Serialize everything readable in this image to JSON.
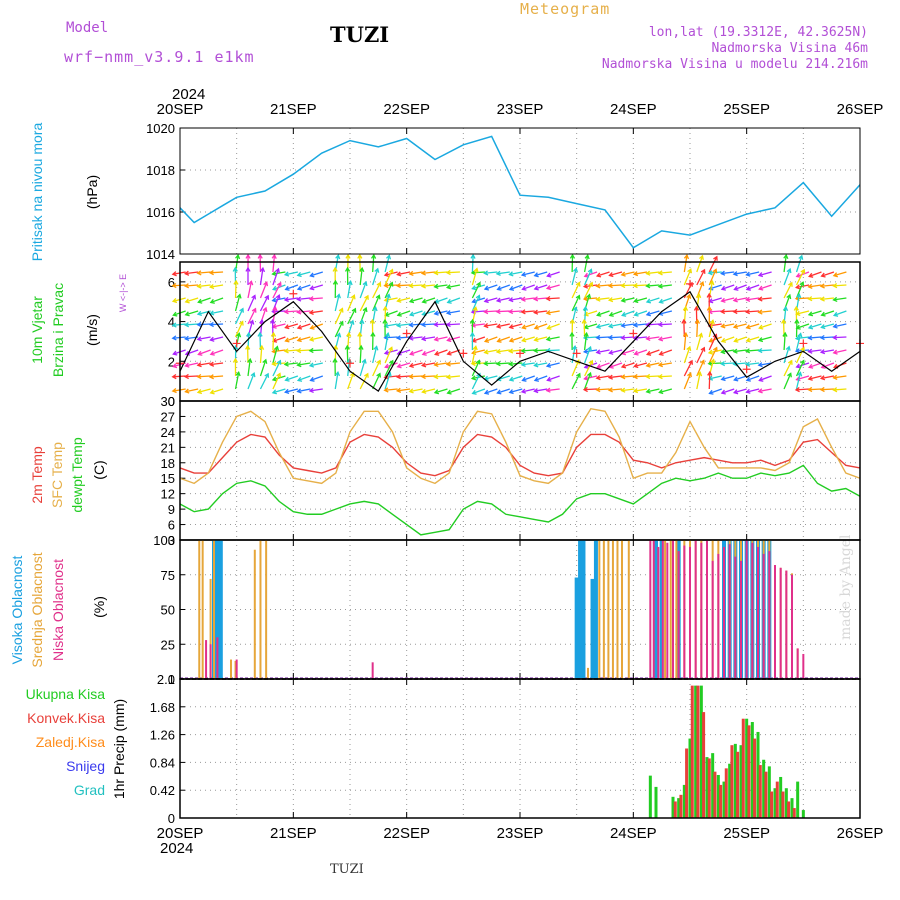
{
  "header": {
    "model_label": "Model",
    "model_name": "wrf−nmm_v3.9.1 e1km",
    "station": "TUZI",
    "title": "Meteogram",
    "location": "lon,lat (19.3312E, 42.3625N)",
    "height": "Nadmorska Visina 46m",
    "model_height": "Nadmorska Visina u modelu 214.216m"
  },
  "footer": {
    "station": "TUZI",
    "credit": "made by Angel"
  },
  "chart_data": [
    {
      "type": "line",
      "name": "pressure",
      "ylabel": "Pritisak na nivou mora",
      "unit": "(hPa)",
      "ylim": [
        1014,
        1020
      ],
      "yticks": [
        1014,
        1016,
        1018,
        1020
      ],
      "x_ticks": [
        "20SEP",
        "21SEP",
        "22SEP",
        "23SEP",
        "24SEP",
        "25SEP",
        "26SEP"
      ],
      "year": "2024",
      "grid": true,
      "x": [
        0,
        0.125,
        0.25,
        0.375,
        0.5,
        0.75,
        1,
        1.25,
        1.5,
        1.75,
        2,
        2.25,
        2.5,
        2.75,
        3,
        3.25,
        3.5,
        3.75,
        4,
        4.25,
        4.5,
        4.75,
        5,
        5.25,
        5.5,
        5.75,
        6
      ],
      "series": [
        {
          "color": "#1aa8e0",
          "values": [
            1016.2,
            1015.5,
            1015.9,
            1016.3,
            1016.7,
            1017.0,
            1017.8,
            1018.8,
            1019.4,
            1019.1,
            1019.5,
            1018.5,
            1019.2,
            1019.6,
            1016.8,
            1016.7,
            1016.4,
            1016.1,
            1014.3,
            1015.1,
            1014.9,
            1015.4,
            1015.9,
            1016.2,
            1017.4,
            1015.8,
            1017.3
          ]
        }
      ]
    },
    {
      "type": "line",
      "name": "wind",
      "ylabel_1": "10m Vjetar",
      "ylabel_2": "Brzina i Pravac",
      "unit": "(m/s)",
      "compass": "W <-|-> E",
      "ylim": [
        0,
        7
      ],
      "yticks": [
        0,
        2,
        4,
        6
      ],
      "grid": true,
      "x": [
        0,
        0.25,
        0.5,
        0.75,
        1,
        1.25,
        1.5,
        1.75,
        2,
        2.25,
        2.5,
        2.75,
        3,
        3.25,
        3.5,
        3.75,
        4,
        4.25,
        4.5,
        4.75,
        5,
        5.25,
        5.5,
        5.75,
        6
      ],
      "series": [
        {
          "color": "#000000",
          "values": [
            1.5,
            4.5,
            2.5,
            4.0,
            5.0,
            3.5,
            1.5,
            0.5,
            3.0,
            5.0,
            2.0,
            0.8,
            2.0,
            2.5,
            2.0,
            1.5,
            3.0,
            4.5,
            5.5,
            3.0,
            1.2,
            2.0,
            2.5,
            1.5,
            2.5
          ]
        }
      ],
      "arrow_palette": [
        "#ff3030",
        "#ff9900",
        "#f0e000",
        "#22dd22",
        "#22d0d0",
        "#2277ff",
        "#aa22ff",
        "#ff33bb"
      ]
    },
    {
      "type": "line",
      "name": "temperature",
      "ylabel_1": "2m Temp",
      "ylabel_2": "SFC Temp",
      "ylabel_3": "dewpt Temp",
      "unit": "(C)",
      "ylim": [
        3,
        30
      ],
      "yticks": [
        3,
        6,
        9,
        12,
        15,
        18,
        21,
        24,
        27,
        30
      ],
      "grid": true,
      "x": [
        0,
        0.125,
        0.25,
        0.375,
        0.5,
        0.625,
        0.75,
        0.875,
        1,
        1.125,
        1.25,
        1.375,
        1.5,
        1.625,
        1.75,
        1.875,
        2,
        2.125,
        2.25,
        2.375,
        2.5,
        2.625,
        2.75,
        2.875,
        3,
        3.125,
        3.25,
        3.375,
        3.5,
        3.625,
        3.75,
        3.875,
        4,
        4.125,
        4.25,
        4.375,
        4.5,
        4.625,
        4.75,
        4.875,
        5,
        5.125,
        5.25,
        5.375,
        5.5,
        5.625,
        5.75,
        5.875,
        6
      ],
      "series": [
        {
          "name": "2m Temp",
          "color": "#e8403a",
          "values": [
            17,
            16,
            16,
            19,
            22,
            23.5,
            23,
            19.5,
            17,
            16.5,
            16,
            17,
            22,
            23.5,
            23,
            21,
            18,
            16,
            15.5,
            16.5,
            21,
            23.5,
            23,
            21,
            17.5,
            16,
            15.5,
            16,
            21,
            23.5,
            23.5,
            22,
            18.5,
            18,
            17,
            18,
            18.5,
            19,
            18.5,
            18,
            18,
            18.5,
            17.5,
            18.5,
            22,
            22.5,
            20,
            17.5,
            17
          ]
        },
        {
          "name": "SFC Temp",
          "color": "#e6b04a",
          "values": [
            15,
            14,
            16,
            22,
            27,
            28,
            26,
            20,
            15,
            14.5,
            14,
            16,
            24,
            28,
            28,
            24,
            17,
            15,
            14,
            16,
            24,
            28,
            27.5,
            22,
            15.5,
            14.5,
            14,
            16,
            24,
            28.5,
            28,
            23,
            15,
            16,
            16,
            20,
            26,
            21,
            17,
            17,
            17,
            17,
            16.5,
            18,
            25,
            26.5,
            21,
            16,
            15
          ]
        },
        {
          "name": "dewpt Temp",
          "color": "#22cc22",
          "values": [
            10,
            8.5,
            9,
            12,
            14,
            14.5,
            13.5,
            10.5,
            8.5,
            8,
            8,
            9,
            10,
            10.5,
            10,
            8,
            6,
            4,
            4.5,
            5,
            9,
            10.5,
            10,
            8,
            7.5,
            7,
            6.5,
            8,
            11,
            12,
            12,
            11,
            10,
            12,
            14,
            15,
            14.5,
            15,
            16,
            15,
            15,
            16,
            15.5,
            16,
            17.5,
            14,
            12.5,
            13,
            11.5
          ]
        }
      ]
    },
    {
      "type": "bar",
      "name": "cloud",
      "ylabel_1": "Visoka Oblacnost",
      "ylabel_2": "Srednja Oblacnost",
      "ylabel_3": "Niska Oblacnost",
      "unit": "(%)",
      "ylim": [
        0,
        100
      ],
      "yticks": [
        0,
        25,
        50,
        75,
        100
      ],
      "grid": true,
      "series": [
        {
          "name": "Visoka Oblacnost",
          "color": "#1aa0e0",
          "x": [
            0.3,
            0.33,
            0.36,
            3.5,
            3.53,
            3.56,
            3.64,
            3.67,
            4.2,
            4.25,
            4.4,
            4.8,
            4.85,
            4.9,
            4.95,
            5.0,
            5.05,
            5.1,
            5.15,
            5.2
          ],
          "values": [
            100,
            100,
            100,
            73,
            100,
            100,
            72,
            100,
            100,
            100,
            100,
            100,
            100,
            100,
            100,
            100,
            100,
            100,
            100,
            100
          ]
        },
        {
          "name": "Srednja Oblacnost",
          "color": "#e6a63a",
          "x": [
            0.17,
            0.2,
            0.27,
            0.3,
            0.45,
            0.49,
            0.66,
            0.71,
            0.76,
            3.6,
            3.7,
            3.74,
            3.78,
            3.82,
            3.86,
            3.9,
            3.96,
            4.28,
            4.33,
            4.38,
            4.45,
            4.5,
            4.55,
            4.6,
            4.65,
            4.7,
            4.75,
            4.85,
            4.9,
            4.95,
            5.05,
            5.1,
            5.15,
            5.2,
            5.25,
            5.3,
            5.35,
            5.4,
            5.45
          ],
          "values": [
            100,
            100,
            72,
            100,
            14,
            13,
            93,
            100,
            100,
            8,
            100,
            100,
            100,
            100,
            100,
            100,
            100,
            100,
            100,
            100,
            100,
            100,
            100,
            100,
            100,
            100,
            100,
            100,
            100,
            100,
            100,
            100,
            100,
            100,
            80,
            80,
            78,
            76,
            22
          ]
        },
        {
          "name": "Niska Oblacnost",
          "color": "#e0308a",
          "x": [
            0.23,
            0.27,
            0.33,
            0.5,
            1.7,
            4.15,
            4.18,
            4.22,
            4.26,
            4.3,
            4.35,
            4.4,
            4.45,
            4.5,
            4.55,
            4.6,
            4.65,
            4.7,
            4.75,
            4.8,
            4.85,
            4.9,
            4.95,
            5.0,
            5.05,
            5.1,
            5.15,
            5.2,
            5.25,
            5.3,
            5.35,
            5.4,
            5.45,
            5.5
          ],
          "values": [
            28,
            25,
            30,
            14,
            12,
            100,
            100,
            95,
            100,
            98,
            100,
            92,
            96,
            95,
            100,
            98,
            100,
            85,
            90,
            95,
            97,
            88,
            85,
            100,
            98,
            95,
            90,
            92,
            82,
            80,
            78,
            75,
            22,
            18
          ]
        }
      ]
    },
    {
      "type": "bar",
      "name": "precipitation",
      "ylabel": "1hr Precip",
      "unit": "(mm)",
      "ylim": [
        0,
        2.1
      ],
      "yticks": [
        0,
        0.42,
        0.84,
        1.26,
        1.68,
        2.1
      ],
      "ytick_labels": [
        "0",
        "0.42",
        "0.84",
        "1.26",
        "1.68",
        "2.1"
      ],
      "x_ticks": [
        "20SEP",
        "21SEP",
        "22SEP",
        "23SEP",
        "24SEP",
        "25SEP",
        "26SEP"
      ],
      "year": "2024",
      "grid": true,
      "legend": [
        {
          "name": "Ukupna Kisa",
          "color": "#22cc22"
        },
        {
          "name": "Konvek.Kisa",
          "color": "#e8403a"
        },
        {
          "name": "Zaledj.Kisa",
          "color": "#ff8c1a"
        },
        {
          "name": "Snijeg",
          "color": "#3a3aee"
        },
        {
          "name": "Grad",
          "color": "#22c0c0"
        }
      ],
      "series": [
        {
          "name": "Ukupna Kisa",
          "color": "#22cc22",
          "x": [
            4.15,
            4.2,
            4.35,
            4.4,
            4.45,
            4.5,
            4.55,
            4.6,
            4.65,
            4.7,
            4.75,
            4.8,
            4.85,
            4.9,
            4.95,
            5.0,
            5.05,
            5.1,
            5.15,
            5.2,
            5.25,
            5.3,
            5.35,
            5.4,
            5.45,
            5.5
          ],
          "values": [
            0.64,
            0.47,
            0.32,
            0.3,
            0.5,
            1.2,
            2.0,
            2.0,
            0.92,
            0.98,
            0.65,
            0.55,
            0.82,
            1.12,
            1.1,
            1.5,
            1.45,
            1.3,
            0.88,
            0.78,
            0.45,
            0.62,
            0.45,
            0.3,
            0.55,
            0.12
          ]
        },
        {
          "name": "Konvek.Kisa",
          "color": "#e8403a",
          "x": [
            4.37,
            4.42,
            4.47,
            4.52,
            4.57,
            4.62,
            4.67,
            4.72,
            4.77,
            4.82,
            4.87,
            4.92,
            4.97,
            5.02,
            5.07,
            5.12,
            5.17,
            5.22,
            5.27,
            5.32,
            5.37,
            5.42
          ],
          "values": [
            0.25,
            0.35,
            1.05,
            2.0,
            2.0,
            1.6,
            0.9,
            0.7,
            0.5,
            0.75,
            1.1,
            1.0,
            1.5,
            1.4,
            1.2,
            0.8,
            0.7,
            0.4,
            0.55,
            0.4,
            0.25,
            0.15
          ]
        }
      ]
    }
  ]
}
